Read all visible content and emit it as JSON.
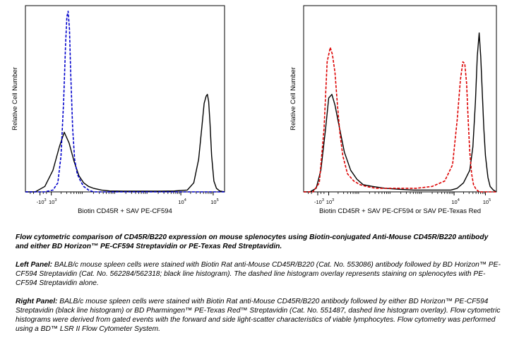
{
  "colors": {
    "black_hist": "#000000",
    "blue_dash": "#0000cc",
    "red_dash": "#dd0000",
    "axis": "#000000"
  },
  "chart_data": [
    {
      "type": "line",
      "panel": "left",
      "title": "",
      "xlabel": "Biotin CD45R + SAV PE-CF594",
      "ylabel": "Relative Cell Number",
      "x_scale": "biexponential",
      "x_ticks": [
        {
          "base": "-10",
          "exp": "3",
          "value": -1000
        },
        {
          "base": "10",
          "exp": "3",
          "value": 1000
        },
        {
          "base": "10",
          "exp": "4",
          "value": 10000
        },
        {
          "base": "10",
          "exp": "5",
          "value": 100000
        }
      ],
      "xlim_decades": [
        -0.8,
        5.35
      ],
      "ylim": [
        0,
        1
      ],
      "grid": false,
      "series": [
        {
          "style": "solid",
          "color": "black",
          "x": [
            -0.8,
            -0.5,
            -0.2,
            0.05,
            0.25,
            0.4,
            0.55,
            0.7,
            0.85,
            1.0,
            1.15,
            1.3,
            1.55,
            1.8,
            2.2,
            2.6,
            3.0,
            3.4,
            3.8,
            4.2,
            4.4,
            4.55,
            4.65,
            4.72,
            4.78,
            4.82,
            4.86,
            4.9,
            4.95,
            5.02,
            5.1,
            5.2,
            5.35
          ],
          "y": [
            0.0,
            0.0,
            0.03,
            0.12,
            0.25,
            0.33,
            0.27,
            0.17,
            0.09,
            0.05,
            0.03,
            0.02,
            0.01,
            0.005,
            0.004,
            0.004,
            0.004,
            0.004,
            0.005,
            0.01,
            0.05,
            0.18,
            0.36,
            0.49,
            0.53,
            0.54,
            0.5,
            0.38,
            0.2,
            0.06,
            0.02,
            0.005,
            0.0
          ]
        },
        {
          "style": "dashed",
          "color": "blue",
          "x": [
            -0.8,
            -0.2,
            0.05,
            0.2,
            0.3,
            0.38,
            0.44,
            0.48,
            0.52,
            0.56,
            0.6,
            0.66,
            0.72,
            0.8,
            0.9,
            1.0,
            1.15,
            1.3,
            1.6,
            2.0,
            5.35
          ],
          "y": [
            0.0,
            0.0,
            0.01,
            0.05,
            0.2,
            0.5,
            0.82,
            0.97,
            1.0,
            0.9,
            0.65,
            0.35,
            0.18,
            0.1,
            0.06,
            0.03,
            0.01,
            0.0,
            0.0,
            0.0,
            0.0
          ]
        }
      ]
    },
    {
      "type": "line",
      "panel": "right",
      "title": "",
      "xlabel": "Biotin CD45R + SAV PE-CF594 or SAV PE-Texas Red",
      "ylabel": "Relative Cell Number",
      "x_scale": "biexponential",
      "x_ticks": [
        {
          "base": "-10",
          "exp": "3",
          "value": -1000
        },
        {
          "base": "10",
          "exp": "3",
          "value": 1000
        },
        {
          "base": "10",
          "exp": "4",
          "value": 10000
        },
        {
          "base": "10",
          "exp": "5",
          "value": 100000
        }
      ],
      "xlim_decades": [
        -0.8,
        5.35
      ],
      "ylim": [
        0,
        1
      ],
      "grid": false,
      "series": [
        {
          "style": "solid",
          "color": "black",
          "x": [
            -0.8,
            -0.6,
            -0.4,
            -0.25,
            -0.1,
            0.0,
            0.1,
            0.2,
            0.35,
            0.5,
            0.7,
            0.9,
            1.1,
            1.4,
            1.8,
            2.2,
            2.7,
            3.2,
            3.6,
            3.9,
            4.1,
            4.3,
            4.5,
            4.6,
            4.68,
            4.74,
            4.8,
            4.85,
            4.9,
            4.95,
            5.0,
            5.08,
            5.15,
            5.25,
            5.35
          ],
          "y": [
            0.0,
            0.0,
            0.02,
            0.12,
            0.35,
            0.52,
            0.54,
            0.48,
            0.35,
            0.22,
            0.12,
            0.07,
            0.04,
            0.03,
            0.02,
            0.015,
            0.01,
            0.01,
            0.01,
            0.01,
            0.02,
            0.05,
            0.12,
            0.25,
            0.5,
            0.75,
            0.88,
            0.75,
            0.55,
            0.35,
            0.2,
            0.08,
            0.03,
            0.01,
            0.0
          ]
        },
        {
          "style": "dashed",
          "color": "red",
          "x": [
            -0.8,
            -0.5,
            -0.3,
            -0.15,
            -0.05,
            0.05,
            0.12,
            0.2,
            0.28,
            0.36,
            0.45,
            0.6,
            0.8,
            1.0,
            1.2,
            1.5,
            1.9,
            2.3,
            2.8,
            3.3,
            3.7,
            3.95,
            4.1,
            4.2,
            4.28,
            4.34,
            4.4,
            4.45,
            4.5,
            4.56,
            4.62,
            4.7,
            4.8,
            4.9,
            5.35
          ],
          "y": [
            0.0,
            0.0,
            0.05,
            0.35,
            0.72,
            0.8,
            0.76,
            0.66,
            0.48,
            0.32,
            0.2,
            0.1,
            0.06,
            0.04,
            0.03,
            0.02,
            0.02,
            0.02,
            0.02,
            0.03,
            0.06,
            0.15,
            0.4,
            0.62,
            0.72,
            0.71,
            0.6,
            0.4,
            0.22,
            0.1,
            0.04,
            0.015,
            0.0,
            0.0,
            0.0
          ]
        }
      ]
    }
  ],
  "caption": {
    "p1": "Flow cytometric comparison of CD45R/B220 expression on mouse splenocytes using Biotin-conjugated Anti-Mouse CD45R/B220 antibody and either BD Horizon™ PE-CF594 Streptavidin or PE-Texas Red Streptavidin.",
    "p2_label": "Left Panel:",
    "p2_text": " BALB/c mouse spleen cells were stained with Biotin Rat anti-Mouse CD45R/B220 (Cat. No. 553086) antibody followed by BD Horizon™ PE-CF594 Streptavidin (Cat. No. 562284/562318; black line histogram). The dashed line histogram overlay represents staining on splenocytes with PE-CF594 Streptavidin alone.",
    "p3_label": "Right Panel:",
    "p3_text": " BALB/c mouse spleen cells were stained with Biotin Rat anti-Mouse CD45R/B220 antibody followed by either BD Horizon™ PE-CF594 Streptavidin (black line histogram) or BD Pharmingen™ PE-Texas Red™ Streptavidin (Cat. No. 551487, dashed line histogram overlay). Flow cytometric histograms were derived from gated events with the forward and side light-scatter characteristics of viable lymphocytes. Flow cytometry was performed using a BD™ LSR II Flow Cytometer System."
  }
}
